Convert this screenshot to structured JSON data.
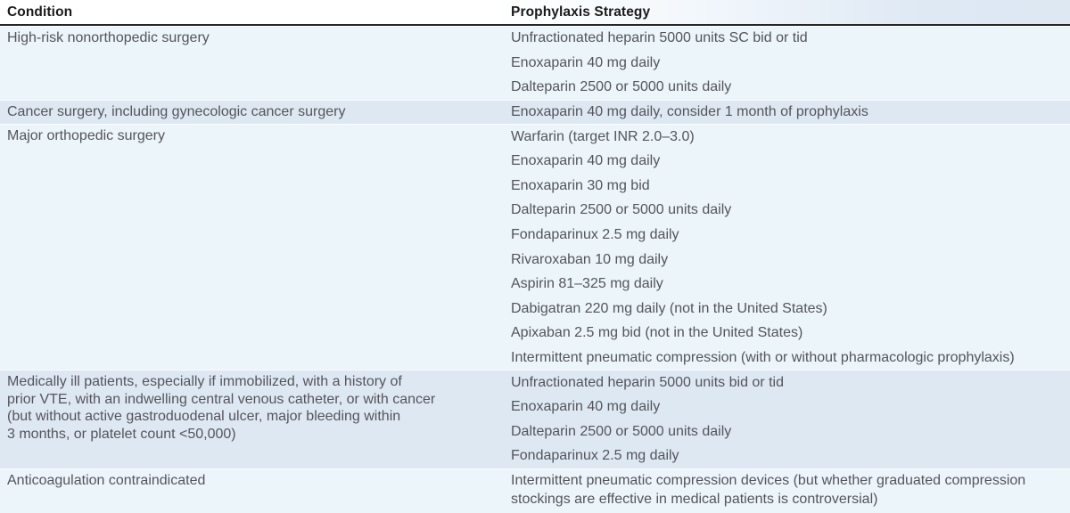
{
  "table": {
    "columns": [
      {
        "label": "Condition"
      },
      {
        "label": "Prophylaxis Strategy"
      }
    ],
    "rows": [
      {
        "condition": "High-risk nonorthopedic surgery",
        "shade": "light",
        "strategies": [
          "Unfractionated heparin 5000 units SC bid or tid",
          "Enoxaparin 40 mg daily",
          "Dalteparin 2500 or 5000 units daily"
        ]
      },
      {
        "condition": "Cancer surgery, including gynecologic cancer surgery",
        "shade": "dark",
        "strategies": [
          "Enoxaparin 40 mg daily, consider 1 month of prophylaxis"
        ]
      },
      {
        "condition": "Major orthopedic surgery",
        "shade": "light",
        "strategies": [
          "Warfarin (target INR 2.0–3.0)",
          "Enoxaparin 40 mg daily",
          "Enoxaparin 30 mg bid",
          "Dalteparin 2500 or 5000 units daily",
          "Fondaparinux 2.5 mg daily",
          "Rivaroxaban 10 mg daily",
          "Aspirin 81–325 mg daily",
          "Dabigatran 220 mg daily (not in the United States)",
          "Apixaban 2.5 mg bid (not in the United States)",
          "Intermittent pneumatic compression (with or without pharmacologic prophylaxis)"
        ]
      },
      {
        "condition": "Medically ill patients, especially if immobilized, with a history of\nprior VTE, with an indwelling central venous catheter, or with cancer\n(but without active gastroduodenal ulcer, major bleeding within\n3 months, or platelet count <50,000)",
        "shade": "dark",
        "strategies": [
          "Unfractionated heparin 5000 units bid or tid",
          "Enoxaparin 40 mg daily",
          "Dalteparin 2500 or 5000 units daily",
          "Fondaparinux 2.5 mg daily"
        ]
      },
      {
        "condition": "Anticoagulation contraindicated",
        "shade": "light",
        "strategies": [
          "Intermittent pneumatic compression devices (but whether graduated compression\nstockings are effective in medical patients is controversial)"
        ]
      }
    ],
    "colors": {
      "row_light": "#ebf5fa",
      "row_dark": "#dee8f3",
      "header_rule": "#262626",
      "header_text": "#1a1a1c",
      "body_text": "#54555a"
    }
  }
}
